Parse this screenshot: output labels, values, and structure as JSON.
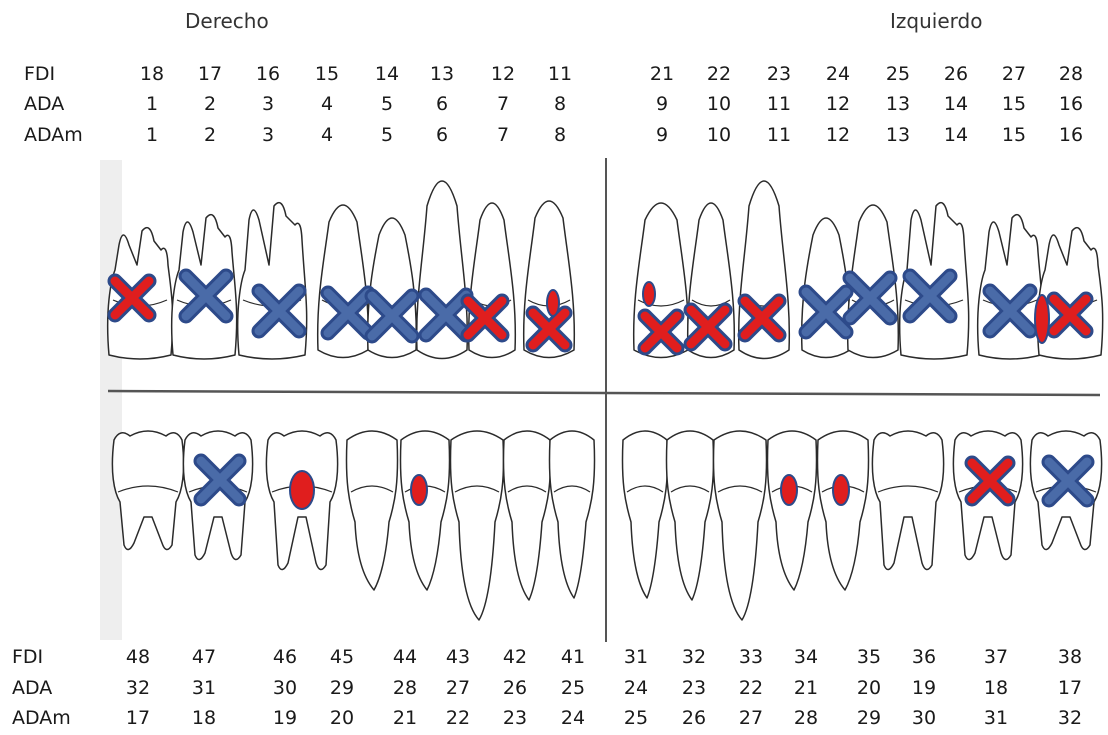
{
  "titles": {
    "right_side": "Derecho",
    "left_side": "Izquierdo"
  },
  "row_labels": {
    "fdi": "FDI",
    "ada": "ADA",
    "adam": "ADAm"
  },
  "legend_colors": {
    "blue_x": "#4a6ba8",
    "red_x": "#e01e1e",
    "red_dot": "#e01e1e",
    "outline": "#2d4a8a"
  },
  "upper": {
    "fdi": [
      "18",
      "17",
      "16",
      "15",
      "14",
      "13",
      "12",
      "11",
      "21",
      "22",
      "23",
      "24",
      "25",
      "26",
      "27",
      "28"
    ],
    "ada": [
      "1",
      "2",
      "3",
      "4",
      "5",
      "6",
      "7",
      "8",
      "9",
      "10",
      "11",
      "12",
      "13",
      "14",
      "15",
      "16"
    ],
    "adam": [
      "1",
      "2",
      "3",
      "4",
      "5",
      "6",
      "7",
      "8",
      "9",
      "10",
      "11",
      "12",
      "13",
      "14",
      "15",
      "16"
    ]
  },
  "lower": {
    "fdi": [
      "48",
      "47",
      "46",
      "45",
      "44",
      "43",
      "42",
      "41",
      "31",
      "32",
      "33",
      "34",
      "35",
      "36",
      "37",
      "38"
    ],
    "ada": [
      "32",
      "31",
      "30",
      "29",
      "28",
      "27",
      "26",
      "25",
      "24",
      "23",
      "22",
      "21",
      "20",
      "19",
      "18",
      "17"
    ],
    "adam": [
      "17",
      "18",
      "19",
      "20",
      "21",
      "22",
      "23",
      "24",
      "25",
      "26",
      "27",
      "28",
      "29",
      "30",
      "31",
      "32"
    ]
  },
  "marks": {
    "upper": [
      "red-x",
      "blue-x",
      "blue-x",
      "blue-x",
      "blue-x",
      "blue-x",
      "red-x",
      "red-x+dot",
      "red-x+dot",
      "red-x",
      "red-x",
      "blue-x",
      "blue-x",
      "blue-x",
      "blue-x",
      "dot+red-x"
    ],
    "lower": [
      "none",
      "blue-x",
      "red-dot",
      "none",
      "red-dot",
      "none",
      "none",
      "none",
      "none",
      "none",
      "none",
      "red-dot",
      "red-dot",
      "none",
      "red-x",
      "blue-x"
    ]
  }
}
